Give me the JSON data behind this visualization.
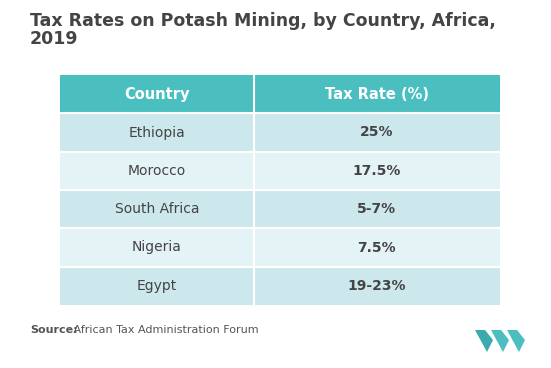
{
  "title_line1": "Tax Rates on Potash Mining, by Country, Africa,",
  "title_line2": "2019",
  "title_fontsize": 12.5,
  "header": [
    "Country",
    "Tax Rate (%)"
  ],
  "rows": [
    [
      "Ethiopia",
      "25%"
    ],
    [
      "Morocco",
      "17.5%"
    ],
    [
      "South Africa",
      "5-7%"
    ],
    [
      "Nigeria",
      "7.5%"
    ],
    [
      "Egypt",
      "19-23%"
    ]
  ],
  "header_bg_color": "#4BBFC0",
  "header_text_color": "#ffffff",
  "row_bg_color_odd": "#cde8ec",
  "row_bg_color_even": "#e4f3f5",
  "row_text_color": "#444444",
  "source_bold": "Source:",
  "source_normal": " African Tax Administration Forum",
  "background_color": "#ffffff",
  "logo_color": "#4BBFC0"
}
